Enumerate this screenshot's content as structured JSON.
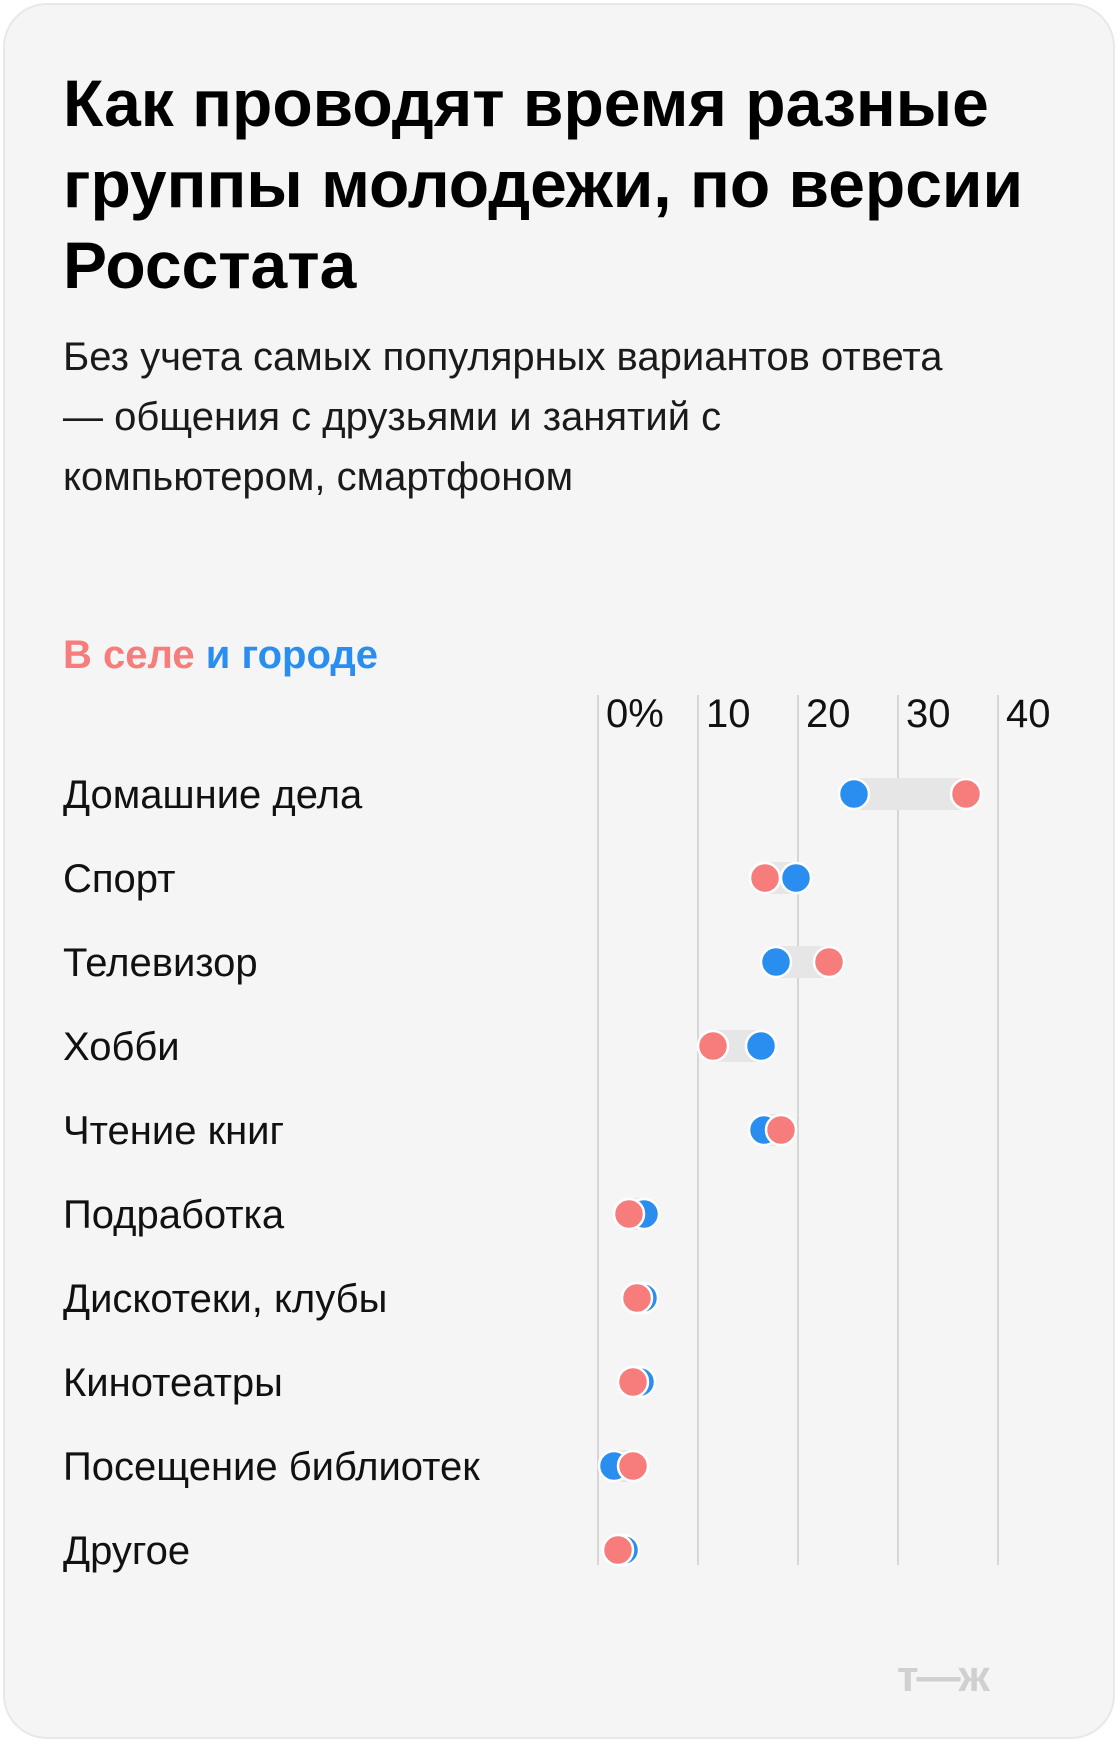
{
  "title": "Как проводят время разные группы молодежи, по версии Росстата",
  "subtitle": "Без учета самых популярных вариантов ответа — общения с друзьями и занятий с компьютером, смартфоном",
  "legend": {
    "rural_label": "В селе",
    "urban_label": "и городе"
  },
  "watermark": "т—ж",
  "colors": {
    "rural": "#f77c7c",
    "urban": "#2a8ef0",
    "range_band": "#e6e6e6",
    "gridline": "#d6d6d6",
    "background": "#f5f5f5"
  },
  "chart_data": {
    "type": "dumbbell",
    "x_unit": "%",
    "xlim": [
      0,
      40
    ],
    "ticks": [
      {
        "value": 0,
        "label": "0%"
      },
      {
        "value": 10,
        "label": "10"
      },
      {
        "value": 20,
        "label": "20"
      },
      {
        "value": 30,
        "label": "30"
      },
      {
        "value": 40,
        "label": "40"
      }
    ],
    "grid": true,
    "categories": [
      "Домашние дела",
      "Спорт",
      "Телевизор",
      "Хобби",
      "Чтение книг",
      "Подработка",
      "Дискотеки, клубы",
      "Кинотеатры",
      "Посещение библиотек",
      "Другое"
    ],
    "series": [
      {
        "name": "В селе",
        "color": "#f77c7c",
        "values": [
          36.8,
          16.7,
          23.1,
          11.5,
          18.3,
          3.1,
          3.9,
          3.5,
          3.5,
          2.0
        ]
      },
      {
        "name": "и городе",
        "color": "#2a8ef0",
        "values": [
          25.6,
          19.8,
          17.8,
          16.3,
          16.6,
          4.6,
          4.5,
          4.2,
          1.6,
          2.6
        ]
      }
    ]
  }
}
